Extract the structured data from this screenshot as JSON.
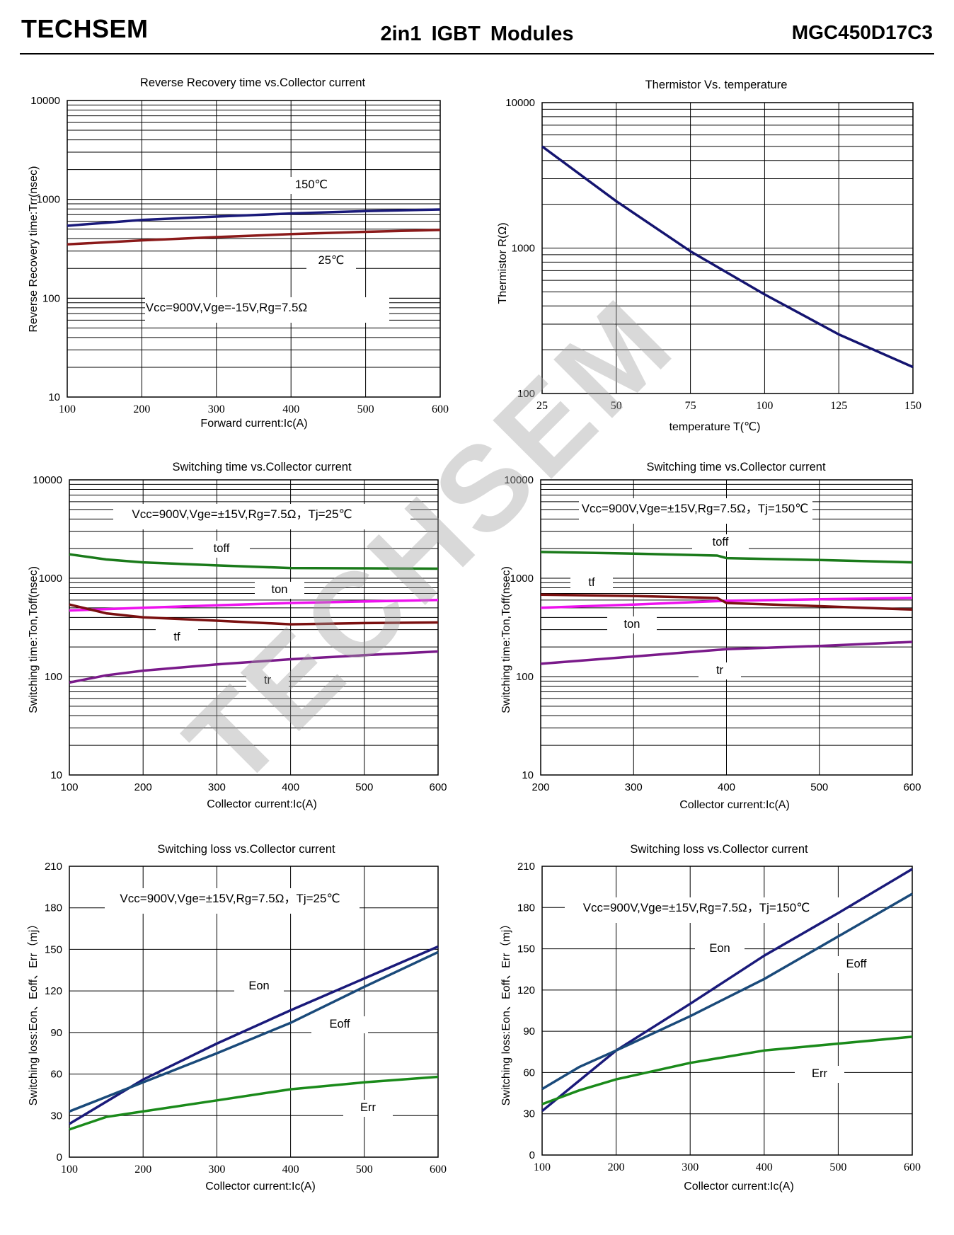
{
  "header": {
    "brand": "TECHSEM",
    "title": "2in1  IGBT  Modules",
    "part_number": "MGC450D17C3"
  },
  "watermark": "TECHSEM",
  "chart_data": [
    {
      "type": "line",
      "title": "Reverse Recovery time vs.Collector current",
      "xlabel": "Forward current:Ic(A)",
      "ylabel": "Reverse Recovery time:Trr(nsec)",
      "xlim": [
        100,
        600
      ],
      "ylim": [
        10,
        10000
      ],
      "yscale": "log",
      "grid": true,
      "x_ticks": [
        "100",
        "200",
        "300",
        "400",
        "500",
        "600"
      ],
      "y_ticks": [
        "10",
        "100",
        "1000",
        "10000"
      ],
      "annotation": "Vcc=900V,Vge=-15V,Rg=7.5Ω",
      "series": [
        {
          "name": "150℃",
          "color": "#1a1a7a",
          "points": [
            [
              100,
              540
            ],
            [
              200,
              620
            ],
            [
              300,
              670
            ],
            [
              400,
              720
            ],
            [
              500,
              760
            ],
            [
              600,
              790
            ]
          ]
        },
        {
          "name": "25℃",
          "color": "#8b1a1a",
          "points": [
            [
              100,
              350
            ],
            [
              200,
              385
            ],
            [
              300,
              415
            ],
            [
              400,
              445
            ],
            [
              500,
              470
            ],
            [
              600,
              490
            ]
          ]
        }
      ]
    },
    {
      "type": "line",
      "title": "Thermistor Vs. temperature",
      "xlabel": "temperature                    T(℃)",
      "ylabel": "Thermistor                R(Ω)",
      "xlim": [
        25,
        150
      ],
      "ylim": [
        100,
        10000
      ],
      "yscale": "log",
      "grid": true,
      "x_ticks": [
        "25",
        "50",
        "75",
        "100",
        "125",
        "150"
      ],
      "y_ticks": [
        "100",
        "1000",
        "10000"
      ],
      "series": [
        {
          "name": "",
          "color": "#141470",
          "points": [
            [
              25,
              5000
            ],
            [
              50,
              2100
            ],
            [
              75,
              950
            ],
            [
              100,
              480
            ],
            [
              125,
              255
            ],
            [
              150,
              152
            ]
          ]
        }
      ]
    },
    {
      "type": "line",
      "title": "Switching time vs.Collector current",
      "xlabel": "Collector current:Ic(A)",
      "ylabel": "Switching time:Ton,Toff(nsec)",
      "xlim": [
        100,
        600
      ],
      "ylim": [
        10,
        10000
      ],
      "yscale": "log",
      "grid": true,
      "x_ticks": [
        "100",
        "200",
        "300",
        "400",
        "500",
        "600"
      ],
      "y_ticks": [
        "10",
        "100",
        "1000",
        "10000"
      ],
      "annotation": "Vcc=900V,Vge=±15V,Rg=7.5Ω，Tj=25℃",
      "series": [
        {
          "name": "toff",
          "color": "#1a7a1a",
          "points": [
            [
              100,
              1750
            ],
            [
              150,
              1550
            ],
            [
              200,
              1450
            ],
            [
              300,
              1350
            ],
            [
              400,
              1270
            ],
            [
              500,
              1260
            ],
            [
              600,
              1250
            ]
          ]
        },
        {
          "name": "ton",
          "color": "#ee11ee",
          "points": [
            [
              100,
              470
            ],
            [
              200,
              500
            ],
            [
              300,
              530
            ],
            [
              400,
              560
            ],
            [
              500,
              580
            ],
            [
              600,
              600
            ]
          ]
        },
        {
          "name": "tf",
          "color": "#7a1010",
          "points": [
            [
              100,
              540
            ],
            [
              150,
              440
            ],
            [
              200,
              400
            ],
            [
              300,
              370
            ],
            [
              400,
              340
            ],
            [
              500,
              350
            ],
            [
              600,
              355
            ]
          ]
        },
        {
          "name": "tr",
          "color": "#7a1a8a",
          "points": [
            [
              100,
              87
            ],
            [
              150,
              103
            ],
            [
              200,
              115
            ],
            [
              300,
              133
            ],
            [
              400,
              150
            ],
            [
              500,
              165
            ],
            [
              600,
              180
            ]
          ]
        }
      ]
    },
    {
      "type": "line",
      "title": "Switching time vs.Collector current",
      "xlabel": "Collector current:Ic(A)",
      "ylabel": "Switching time:Ton,Toff(nsec)",
      "xlim": [
        200,
        600
      ],
      "ylim": [
        10,
        10000
      ],
      "yscale": "log",
      "grid": true,
      "x_ticks": [
        "200",
        "300",
        "400",
        "500",
        "600"
      ],
      "y_ticks": [
        "10",
        "100",
        "1000",
        "10000"
      ],
      "annotation": "Vcc=900V,Vge=±15V,Rg=7.5Ω，Tj=150℃",
      "series": [
        {
          "name": "toff",
          "color": "#1a7a1a",
          "points": [
            [
              200,
              1850
            ],
            [
              300,
              1780
            ],
            [
              390,
              1700
            ],
            [
              400,
              1600
            ],
            [
              500,
              1530
            ],
            [
              600,
              1450
            ]
          ]
        },
        {
          "name": "ton",
          "color": "#ee11ee",
          "points": [
            [
              200,
              500
            ],
            [
              300,
              540
            ],
            [
              400,
              590
            ],
            [
              500,
              610
            ],
            [
              600,
              630
            ]
          ]
        },
        {
          "name": "tf",
          "color": "#7a1010",
          "points": [
            [
              200,
              680
            ],
            [
              300,
              660
            ],
            [
              390,
              630
            ],
            [
              400,
              560
            ],
            [
              500,
              520
            ],
            [
              600,
              480
            ]
          ]
        },
        {
          "name": "tr",
          "color": "#7a1a8a",
          "points": [
            [
              200,
              135
            ],
            [
              300,
              160
            ],
            [
              400,
              190
            ],
            [
              500,
              205
            ],
            [
              600,
              225
            ]
          ]
        }
      ]
    },
    {
      "type": "line",
      "title": "Switching loss vs.Collector current",
      "xlabel": "Collector current:Ic(A)",
      "ylabel": "Switching loss:Eon、Eoff、Err（mj）",
      "xlim": [
        100,
        600
      ],
      "ylim": [
        0,
        210
      ],
      "grid": true,
      "x_ticks": [
        "100",
        "200",
        "300",
        "400",
        "500",
        "600"
      ],
      "y_ticks": [
        "0",
        "30",
        "60",
        "90",
        "120",
        "150",
        "180",
        "210"
      ],
      "annotation": "Vcc=900V,Vge=±15V,Rg=7.5Ω，Tj=25℃",
      "series": [
        {
          "name": "Eon",
          "color": "#1a1a7a",
          "points": [
            [
              100,
              24
            ],
            [
              200,
              56
            ],
            [
              300,
              82
            ],
            [
              400,
              106
            ],
            [
              500,
              129
            ],
            [
              600,
              152
            ]
          ]
        },
        {
          "name": "Eoff",
          "color": "#1a4a7a",
          "points": [
            [
              100,
              33
            ],
            [
              200,
              54
            ],
            [
              300,
              75
            ],
            [
              400,
              97
            ],
            [
              500,
              123
            ],
            [
              600,
              148
            ]
          ]
        },
        {
          "name": "Err",
          "color": "#1a8a1a",
          "points": [
            [
              100,
              20
            ],
            [
              150,
              29
            ],
            [
              200,
              33
            ],
            [
              300,
              41
            ],
            [
              400,
              49
            ],
            [
              500,
              54
            ],
            [
              600,
              58
            ]
          ]
        }
      ]
    },
    {
      "type": "line",
      "title": "Switching loss vs.Collector current",
      "xlabel": "Collector current:Ic(A)",
      "ylabel": "Switching loss:Eon、Eoff、Err（mj）",
      "xlim": [
        100,
        600
      ],
      "ylim": [
        0,
        210
      ],
      "grid": true,
      "x_ticks": [
        "100",
        "200",
        "300",
        "400",
        "500",
        "600"
      ],
      "y_ticks": [
        "0",
        "30",
        "60",
        "90",
        "120",
        "150",
        "180",
        "210"
      ],
      "annotation": "Vcc=900V,Vge=±15V,Rg=7.5Ω，Tj=150℃",
      "series": [
        {
          "name": "Eon",
          "color": "#1a1a7a",
          "points": [
            [
              100,
              32
            ],
            [
              200,
              76
            ],
            [
              300,
              110
            ],
            [
              400,
              145
            ],
            [
              500,
              176
            ],
            [
              600,
              208
            ]
          ]
        },
        {
          "name": "Eoff",
          "color": "#1a4a7a",
          "points": [
            [
              100,
              48
            ],
            [
              150,
              64
            ],
            [
              200,
              76
            ],
            [
              300,
              101
            ],
            [
              400,
              128
            ],
            [
              500,
              159
            ],
            [
              600,
              190
            ]
          ]
        },
        {
          "name": "Err",
          "color": "#1a8a1a",
          "points": [
            [
              100,
              37
            ],
            [
              150,
              47
            ],
            [
              200,
              55
            ],
            [
              300,
              67
            ],
            [
              400,
              76
            ],
            [
              500,
              81
            ],
            [
              600,
              86
            ]
          ]
        }
      ]
    }
  ]
}
